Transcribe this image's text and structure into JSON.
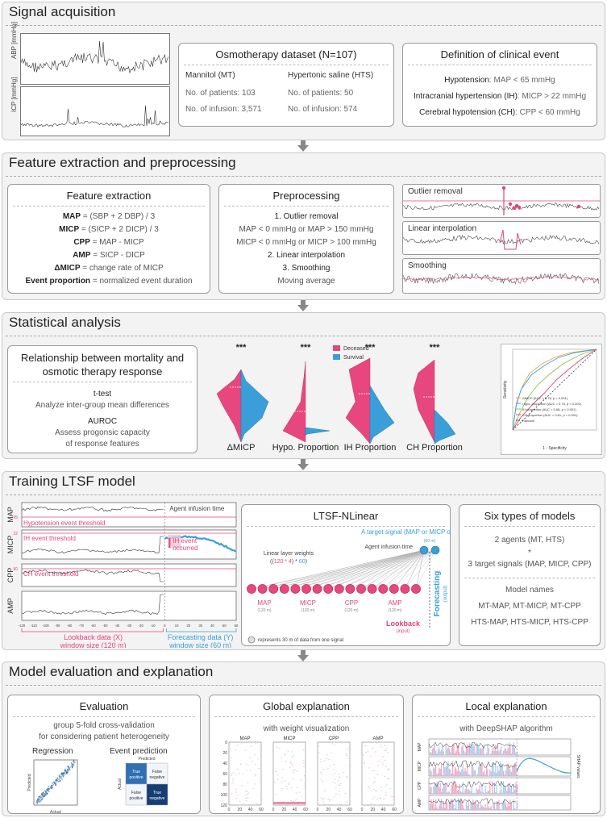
{
  "s1": {
    "title": "Signal acquisition",
    "abp_label": "ABP [mmHg]",
    "icp_label": "ICP [mmHg]",
    "dataset": {
      "title": "Osmotherapy dataset (N=107)",
      "mt_head": "Mannitol (MT)",
      "hts_head": "Hypertonic saline (HTS)",
      "mt_patients": "No. of patients: 103",
      "mt_infusion": "No. of infusion: 3,571",
      "hts_patients": "No. of patients: 50",
      "hts_infusion": "No. of infusion: 574"
    },
    "event": {
      "title": "Definition of clinical event",
      "l1_key": "Hypotension",
      "l1_val": ": MAP < 65 mmHg",
      "l2_key": "Intracranial hypertension (IH)",
      "l2_val": ": MICP > 22 mmHg",
      "l3_key": "Cerebral hypotension (CH)",
      "l3_val": ": CPP < 60 mmHg"
    }
  },
  "s2": {
    "title": "Feature extraction and preprocessing",
    "fe": {
      "title": "Feature extraction",
      "r1k": "MAP",
      "r1v": " = (SBP + 2 DBP) / 3",
      "r2k": "MICP",
      "r2v": " = (SICP + 2 DICP) / 3",
      "r3k": "CPP",
      "r3v": " = MAP - MICP",
      "r4k": "AMP",
      "r4v": " = SICP - DICP",
      "r5k": "ΔMICP",
      "r5v": " = change rate of MICP",
      "r6k": "Event proportion",
      "r6v": " = normalized event duration"
    },
    "pp": {
      "title": "Preprocessing",
      "l1": "1. Outlier removal",
      "l2": "MAP < 0 mmHg or MAP > 150 mmHg",
      "l3": "MICP < 0 mmHg or MICP > 100 mmHg",
      "l4": "2. Linear interpolation",
      "l5": "3. Smoothing",
      "l6": "Moving average"
    },
    "plot1": "Outlier removal",
    "plot2": "Linear interpolation",
    "plot3": "Smoothing"
  },
  "s3": {
    "title": "Statistical analysis",
    "rel_title": "Relationship between mortality and osmotic therapy response",
    "ttest": "t-test",
    "ttest_desc": "Analyze inter-group mean differences",
    "auroc": "AUROC",
    "auroc_desc1": "Assess progonsic capacity",
    "auroc_desc2": "of response features",
    "sig": "***",
    "legend_deceased": "Deceased",
    "legend_survival": "Survival",
    "violin_labels": [
      "ΔMICP",
      "Hypo. Proportion",
      "IH Proportion",
      "CH Proportion"
    ],
    "roc": {
      "xlabel": "1 - Specificity",
      "ylabel": "Sensitivity",
      "legend": [
        "ΔMICP (AUC = 0.76, p < 0.001)",
        "Hypo. proportion (AUC = 0.75, p < 0.001)",
        "IH proportion (AUC = 0.68, p < 0.001)",
        "CH proportion (AUC = 0.61, p < 0.001)",
        "Random"
      ],
      "colors": [
        "#f2a23a",
        "#3a9fd8",
        "#8bc34a",
        "#e0457b",
        "#333333"
      ]
    }
  },
  "s4": {
    "title": "Training LTSF model",
    "ylabels": [
      "MAP",
      "MICP",
      "CPP",
      "AMP"
    ],
    "agent_time": "Agent infusion time",
    "hypo_thr": "Hypotension event threshold",
    "ih_thr": "IH event threshold",
    "ch_thr": "CH event threshold",
    "ih_occ1": "IH event",
    "ih_occ2": "occurred",
    "thr_65": "65",
    "thr_22": "22",
    "thr_60": "60",
    "xticks": [
      "-120",
      "-110",
      "-100",
      "-90",
      "-80",
      "-70",
      "-60",
      "-50",
      "-40",
      "-30",
      "-20",
      "-10",
      "0",
      "10",
      "20",
      "30",
      "40",
      "50",
      "60"
    ],
    "lookback1": "Lookback data (X)",
    "lookback2": "window size (120 m)",
    "forecast1": "Forecasting data (Y)",
    "forecast2": "window size (60 m)",
    "nlinear_title": "LTSF-NLinear",
    "target_signal": "A target signal (MAP or MICP or CPP)",
    "sixty_m": "(60 m)",
    "weights1": "Linear layer weights",
    "weights2a": "((",
    "weights2b": "120 * 4",
    "weights2c": ") * ",
    "weights2d": "60",
    "weights2e": ")",
    "agent_time2": "Agent infusion time",
    "forecasting_v": "Forecasting",
    "output_v": "(output)",
    "groups": [
      "MAP",
      "MICP",
      "CPP",
      "AMP"
    ],
    "group_sub": "(120 m)",
    "lookback_in": "Lookback",
    "input_in": "(input)",
    "note": "represents 30 m of data from one signal",
    "six": {
      "title": "Six types of models",
      "l1": "2 agents (MT, HTS)",
      "l2": "*",
      "l3": "3 target signals (MAP, MICP, CPP)",
      "names_title": "Model names",
      "n1": "MT-MAP, MT-MICP, MT-CPP",
      "n2": "HTS-MAP, HTS-MICP, HTS-CPP"
    }
  },
  "s5": {
    "title": "Model evaluation and explanation",
    "eval": {
      "title": "Evaluation",
      "d1": "group 5-fold cross-validation",
      "d2": "for considering patient heterogeneity",
      "regression": "Regression",
      "event": "Event prediction",
      "predicted": "Predicted",
      "actual": "Actual",
      "tp": "True positive",
      "fn": "False negative",
      "fp": "False positive",
      "tn": "True negative"
    },
    "global": {
      "title": "Global explanation",
      "sub": "with weight visualization",
      "heads": [
        "MAP",
        "MICP",
        "CPP",
        "AMP"
      ],
      "yticks": [
        "0",
        "20",
        "40",
        "60",
        "80",
        "100",
        "120"
      ],
      "xticks": [
        "0",
        "20",
        "40",
        "60"
      ]
    },
    "local": {
      "title": "Local explanation",
      "sub": "with DeepSHAP algorithm",
      "rows": [
        "MAP",
        "MICP",
        "CPP",
        "AMP"
      ],
      "shap": "SHAP values"
    }
  }
}
